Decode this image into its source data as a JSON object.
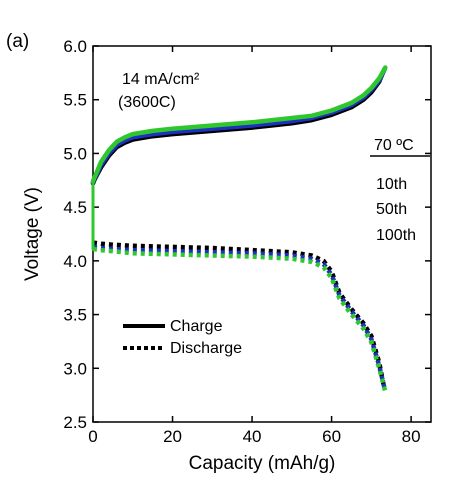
{
  "panel_label": "(a)",
  "chart_data": {
    "type": "line",
    "xlabel": "Capacity (mAh/g)",
    "ylabel": "Voltage (V)",
    "xlim": [
      0,
      85
    ],
    "ylim": [
      2.5,
      6.0
    ],
    "xticks": [
      "0",
      "20",
      "40",
      "60",
      "80"
    ],
    "yticks": [
      "2.5",
      "3.0",
      "3.5",
      "4.0",
      "4.5",
      "5.0",
      "5.5",
      "6.0"
    ],
    "annotation_lines": [
      "14 mA/cm²",
      "(3600C)"
    ],
    "legend_title": "70 ºC",
    "cycle_legend": [
      "10th",
      "50th",
      "100th"
    ],
    "style_legend": {
      "charge": "Charge",
      "discharge": "Discharge"
    },
    "colors": {
      "10th": "#000000",
      "50th": "#1f2fbf",
      "100th": "#2ec82e"
    },
    "series": [
      {
        "name": "10th",
        "mode": "charge",
        "x": [
          0,
          0.3,
          1,
          2,
          4,
          6,
          8,
          10,
          15,
          20,
          30,
          40,
          50,
          55,
          60,
          65,
          68,
          70,
          72,
          73.2
        ],
        "y": [
          4.72,
          4.75,
          4.8,
          4.87,
          4.98,
          5.06,
          5.1,
          5.13,
          5.16,
          5.18,
          5.21,
          5.24,
          5.28,
          5.31,
          5.36,
          5.43,
          5.5,
          5.57,
          5.67,
          5.78
        ]
      },
      {
        "name": "50th",
        "mode": "charge",
        "x": [
          0,
          0.3,
          1,
          2,
          4,
          6,
          8,
          10,
          15,
          20,
          30,
          40,
          50,
          55,
          60,
          65,
          68,
          70,
          72,
          73.4
        ],
        "y": [
          4.73,
          4.76,
          4.81,
          4.89,
          5.0,
          5.08,
          5.12,
          5.15,
          5.18,
          5.2,
          5.23,
          5.26,
          5.3,
          5.33,
          5.38,
          5.45,
          5.52,
          5.59,
          5.68,
          5.79
        ]
      },
      {
        "name": "100th",
        "mode": "charge",
        "x": [
          0,
          0.3,
          1,
          2,
          4,
          6,
          8,
          10,
          15,
          20,
          30,
          40,
          50,
          55,
          60,
          65,
          68,
          70,
          72,
          73.5
        ],
        "y": [
          4.74,
          4.77,
          4.83,
          4.92,
          5.03,
          5.11,
          5.15,
          5.18,
          5.21,
          5.23,
          5.26,
          5.29,
          5.33,
          5.35,
          5.4,
          5.47,
          5.54,
          5.61,
          5.7,
          5.8
        ]
      },
      {
        "name": "10th",
        "mode": "discharge",
        "x": [
          0,
          2,
          5,
          10,
          20,
          30,
          40,
          50,
          55,
          58,
          60,
          62,
          65,
          68,
          70,
          72,
          73.2
        ],
        "y": [
          4.17,
          4.16,
          4.15,
          4.14,
          4.13,
          4.12,
          4.1,
          4.08,
          4.05,
          4.0,
          3.9,
          3.7,
          3.55,
          3.42,
          3.3,
          3.05,
          2.82
        ]
      },
      {
        "name": "50th",
        "mode": "discharge",
        "x": [
          0,
          2,
          5,
          10,
          20,
          30,
          40,
          50,
          55,
          58,
          60,
          62,
          65,
          68,
          70,
          72,
          73.4
        ],
        "y": [
          4.13,
          4.12,
          4.11,
          4.1,
          4.09,
          4.08,
          4.07,
          4.05,
          4.02,
          3.97,
          3.87,
          3.68,
          3.53,
          3.4,
          3.27,
          3.02,
          2.8
        ]
      },
      {
        "name": "100th",
        "mode": "discharge",
        "x": [
          0,
          2,
          5,
          10,
          20,
          30,
          40,
          50,
          55,
          58,
          60,
          62,
          65,
          68,
          70,
          72,
          73.5
        ],
        "y": [
          4.11,
          4.1,
          4.09,
          4.07,
          4.06,
          4.05,
          4.04,
          4.02,
          3.99,
          3.94,
          3.84,
          3.65,
          3.5,
          3.37,
          3.24,
          3.0,
          2.78
        ]
      },
      {
        "name": "10th",
        "mode": "step",
        "x": [
          0,
          0,
          0
        ],
        "y": [
          4.17,
          4.45,
          4.72
        ]
      },
      {
        "name": "50th",
        "mode": "step",
        "x": [
          0,
          0,
          0
        ],
        "y": [
          4.13,
          4.45,
          4.73
        ]
      },
      {
        "name": "100th",
        "mode": "step",
        "x": [
          0,
          0,
          0
        ],
        "y": [
          4.11,
          4.45,
          4.74
        ]
      }
    ]
  }
}
